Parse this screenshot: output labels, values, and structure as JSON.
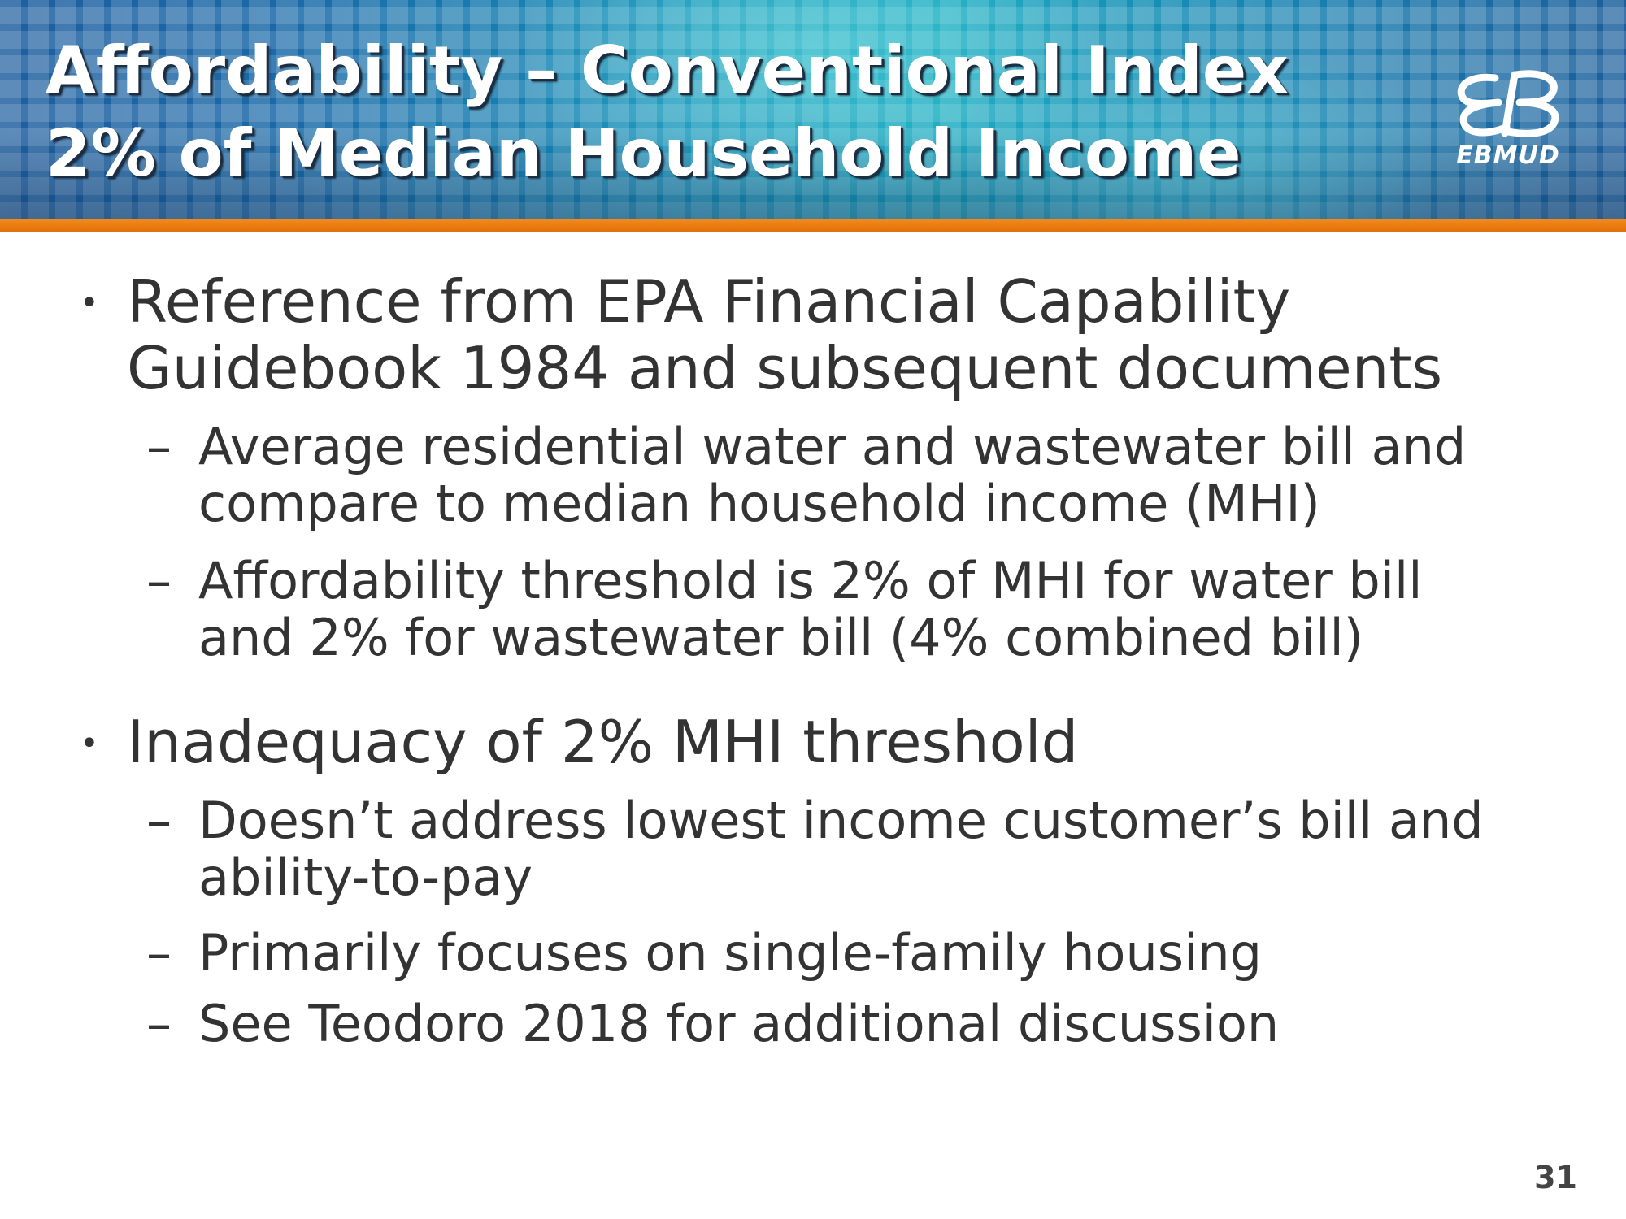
{
  "slide": {
    "title_lines": [
      "Affordability – Conventional Index",
      "2% of Median Household Income"
    ],
    "logo_text": "EBMUD",
    "page_number": "31",
    "bullets": [
      {
        "lines": [
          "Reference from EPA Financial Capability",
          "Guidebook 1984 and subsequent documents"
        ],
        "sub": [
          {
            "lines": [
              "Average residential water and wastewater bill and",
              "compare to median household income (MHI)"
            ]
          },
          {
            "lines": [
              "Affordability threshold is 2% of MHI for water bill",
              "and 2% for wastewater bill (4% combined bill)"
            ]
          }
        ]
      },
      {
        "lines": [
          "Inadequacy of 2% MHI threshold"
        ],
        "sub": [
          {
            "lines": [
              "Doesn’t address lowest income customer’s bill and",
              "ability-to-pay"
            ]
          },
          {
            "lines": [
              "Primarily focuses on single-family housing"
            ]
          },
          {
            "lines": [
              "See Teodoro 2018 for additional discussion"
            ]
          }
        ]
      }
    ]
  },
  "markers": {
    "level1": "•",
    "level2": "–"
  },
  "colors": {
    "accent_orange": "#e8780f",
    "header_blue": "#1690b8",
    "body_text": "#333333"
  }
}
